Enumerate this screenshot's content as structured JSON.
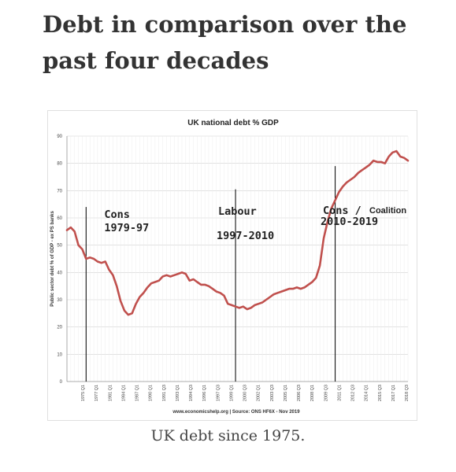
{
  "page": {
    "heading": "Debt in comparison over the past four decades",
    "caption": "UK debt since 1975."
  },
  "colors": {
    "line": "#c0504d",
    "grid": "#d0d0d0",
    "axis": "#999999"
  },
  "chart_data": {
    "type": "line",
    "title": "UK national debt % GDP",
    "ylabel": "Public sector debt % of GDP - ex PS banks",
    "xlabel": "",
    "source": "www.economicshelp.org | Source: ONS HF6X - Nov 2019",
    "ylim": [
      0,
      90
    ],
    "yticks": [
      0,
      10,
      20,
      30,
      40,
      50,
      60,
      70,
      80,
      90
    ],
    "xlim": [
      1975.0,
      2019.5
    ],
    "xtick_labels": [
      "1975 Q1",
      "1977 Q1",
      "1981 Q1",
      "1984 Q1",
      "1987 Q1",
      "1990 Q1",
      "1991 Q3",
      "1993 Q1",
      "1994 Q3",
      "1996 Q1",
      "1997 Q3",
      "1999 Q1",
      "2000 Q3",
      "2002 Q1",
      "2003 Q3",
      "2005 Q1",
      "2006 Q3",
      "2008 Q1",
      "2009 Q3",
      "2011 Q1",
      "2012 Q3",
      "2014 Q1",
      "2015 Q3",
      "2017 Q1",
      "2018 Q3"
    ],
    "grid": true,
    "legend": "none",
    "series": [
      {
        "x": [
          1975.0,
          1975.5,
          1976.0,
          1976.5,
          1977.0,
          1977.5,
          1978.0,
          1978.5,
          1979.0,
          1979.5,
          1980.0,
          1980.5,
          1981.0,
          1981.5,
          1982.0,
          1982.5,
          1983.0,
          1983.5,
          1984.0,
          1984.5,
          1985.0,
          1985.5,
          1986.0,
          1986.5,
          1987.0,
          1987.5,
          1988.0,
          1988.5,
          1989.0,
          1989.5,
          1990.0,
          1990.5,
          1991.0,
          1991.5,
          1992.0,
          1992.5,
          1993.0,
          1993.5,
          1994.0,
          1994.5,
          1995.0,
          1995.5,
          1996.0,
          1996.5,
          1997.0,
          1997.5,
          1998.0,
          1998.5,
          1999.0,
          1999.5,
          2000.0,
          2000.5,
          2001.0,
          2001.5,
          2002.0,
          2002.5,
          2003.0,
          2003.5,
          2004.0,
          2004.5,
          2005.0,
          2005.5,
          2006.0,
          2006.5,
          2007.0,
          2007.5,
          2008.0,
          2008.5,
          2009.0,
          2009.5,
          2010.0,
          2010.5,
          2011.0,
          2011.5,
          2012.0,
          2012.5,
          2013.0,
          2013.5,
          2014.0,
          2014.5,
          2015.0,
          2015.5,
          2016.0,
          2016.5,
          2017.0,
          2017.5,
          2018.0,
          2018.5,
          2019.0,
          2019.5
        ],
        "values": [
          55.5,
          56.5,
          55.0,
          50.0,
          48.5,
          45.0,
          45.5,
          45.0,
          44.0,
          43.5,
          44.0,
          41.0,
          39.0,
          35.0,
          29.5,
          26.0,
          24.5,
          25.0,
          28.5,
          31.0,
          32.5,
          34.5,
          36.0,
          36.5,
          37.0,
          38.5,
          39.0,
          38.5,
          39.0,
          39.5,
          40.0,
          39.5,
          37.0,
          37.5,
          36.5,
          35.5,
          35.5,
          35.0,
          34.0,
          33.0,
          32.5,
          31.5,
          28.5,
          28.0,
          27.5,
          27.0,
          27.5,
          26.5,
          27.0,
          28.0,
          28.5,
          29.0,
          30.0,
          31.0,
          32.0,
          32.5,
          33.0,
          33.5,
          34.0,
          34.0,
          34.5,
          34.0,
          34.5,
          35.5,
          36.5,
          38.0,
          42.5,
          52.5,
          58.5,
          63.5,
          66.5,
          69.5,
          71.5,
          73.0,
          74.0,
          75.0,
          76.5,
          77.5,
          78.5,
          79.5,
          81.0,
          80.5,
          80.5,
          80.0,
          82.5,
          84.0,
          84.5,
          82.5,
          82.0,
          81.0
        ]
      }
    ],
    "annotations": [
      {
        "x": 1977.5,
        "lines": [
          "Cons",
          "1979-97"
        ]
      },
      {
        "x": 1997.5,
        "lines": [
          "Labour",
          "1997-2010"
        ]
      },
      {
        "x": 2010.0,
        "lines": [
          "Cons /",
          "2010-2019"
        ],
        "extra": "Coalition"
      }
    ]
  }
}
